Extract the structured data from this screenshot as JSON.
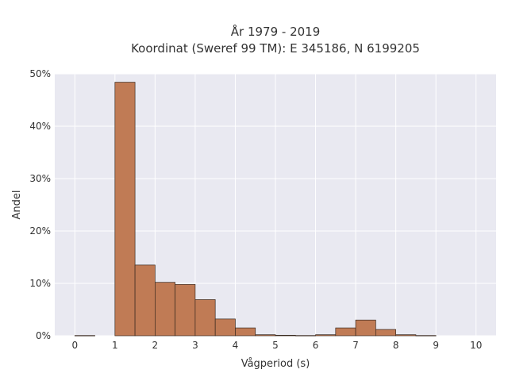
{
  "chart_data": {
    "type": "bar",
    "title_lines": [
      "År 1979 - 2019",
      "Koordinat (Sweref 99 TM): E 345186, N 6199205"
    ],
    "xlabel": "Vågperiod (s)",
    "ylabel": "Andel",
    "xlim": [
      -0.5,
      10.5
    ],
    "ylim": [
      0,
      0.5
    ],
    "x_ticks": [
      0,
      1,
      2,
      3,
      4,
      5,
      6,
      7,
      8,
      9,
      10
    ],
    "x_tick_labels": [
      "0",
      "1",
      "2",
      "3",
      "4",
      "5",
      "6",
      "7",
      "8",
      "9",
      "10"
    ],
    "y_ticks": [
      0,
      0.1,
      0.2,
      0.3,
      0.4,
      0.5
    ],
    "y_tick_labels": [
      "0%",
      "10%",
      "20%",
      "30%",
      "40%",
      "50%"
    ],
    "grid": true,
    "colors": {
      "bar_fill": "#c07b55",
      "bar_edge": "#3a2a20",
      "plot_bg": "#e9e9f1",
      "grid": "#ffffff"
    },
    "bins": [
      {
        "start": 0.0,
        "end": 0.5,
        "value": 0.0005
      },
      {
        "start": 0.5,
        "end": 1.0,
        "value": 0.0
      },
      {
        "start": 1.0,
        "end": 1.5,
        "value": 0.484
      },
      {
        "start": 1.5,
        "end": 2.0,
        "value": 0.135
      },
      {
        "start": 2.0,
        "end": 2.5,
        "value": 0.102
      },
      {
        "start": 2.5,
        "end": 3.0,
        "value": 0.098
      },
      {
        "start": 3.0,
        "end": 3.5,
        "value": 0.069
      },
      {
        "start": 3.5,
        "end": 4.0,
        "value": 0.032
      },
      {
        "start": 4.0,
        "end": 4.5,
        "value": 0.015
      },
      {
        "start": 4.5,
        "end": 5.0,
        "value": 0.002
      },
      {
        "start": 5.0,
        "end": 5.5,
        "value": 0.001
      },
      {
        "start": 5.5,
        "end": 6.0,
        "value": 0.0005
      },
      {
        "start": 6.0,
        "end": 6.5,
        "value": 0.002
      },
      {
        "start": 6.5,
        "end": 7.0,
        "value": 0.015
      },
      {
        "start": 7.0,
        "end": 7.5,
        "value": 0.03
      },
      {
        "start": 7.5,
        "end": 8.0,
        "value": 0.012
      },
      {
        "start": 8.0,
        "end": 8.5,
        "value": 0.002
      },
      {
        "start": 8.5,
        "end": 9.0,
        "value": 0.0005
      }
    ]
  }
}
